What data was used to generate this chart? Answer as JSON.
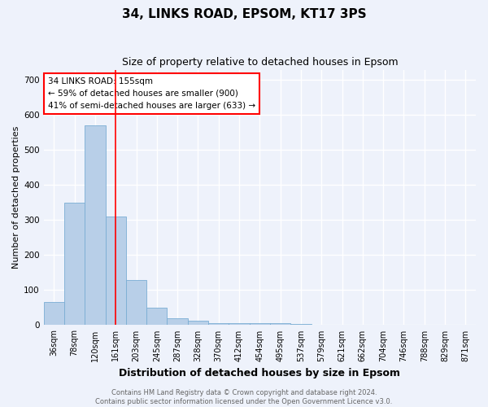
{
  "title": "34, LINKS ROAD, EPSOM, KT17 3PS",
  "subtitle": "Size of property relative to detached houses in Epsom",
  "xlabel": "Distribution of detached houses by size in Epsom",
  "ylabel": "Number of detached properties",
  "categories": [
    "36sqm",
    "78sqm",
    "120sqm",
    "161sqm",
    "203sqm",
    "245sqm",
    "287sqm",
    "328sqm",
    "370sqm",
    "412sqm",
    "454sqm",
    "495sqm",
    "537sqm",
    "579sqm",
    "621sqm",
    "662sqm",
    "704sqm",
    "746sqm",
    "788sqm",
    "829sqm",
    "871sqm"
  ],
  "values": [
    65,
    350,
    570,
    310,
    130,
    50,
    20,
    12,
    5,
    5,
    6,
    5,
    3,
    2,
    0,
    0,
    0,
    0,
    0,
    0,
    0
  ],
  "bar_color": "#b8cfe8",
  "bar_edge_color": "#7aadd4",
  "red_line_index": 3,
  "annotation_text": "34 LINKS ROAD: 155sqm\n← 59% of detached houses are smaller (900)\n41% of semi-detached houses are larger (633) →",
  "annotation_box_color": "white",
  "annotation_border_color": "red",
  "ylim": [
    0,
    730
  ],
  "yticks": [
    0,
    100,
    200,
    300,
    400,
    500,
    600,
    700
  ],
  "footer_line1": "Contains HM Land Registry data © Crown copyright and database right 2024.",
  "footer_line2": "Contains public sector information licensed under the Open Government Licence v3.0.",
  "title_fontsize": 11,
  "subtitle_fontsize": 9,
  "tick_fontsize": 7,
  "ylabel_fontsize": 8,
  "xlabel_fontsize": 9,
  "footer_fontsize": 6,
  "annotation_fontsize": 7.5,
  "background_color": "#eef2fb",
  "grid_color": "white"
}
